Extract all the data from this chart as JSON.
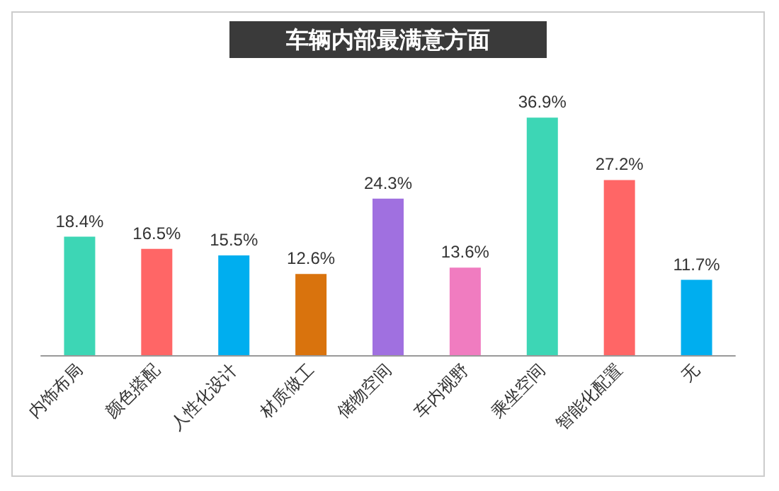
{
  "chart_data": {
    "type": "bar",
    "title": "车辆内部最满意方面",
    "categories": [
      "内饰布局",
      "颜色搭配",
      "人性化设计",
      "材质做工",
      "储物空间",
      "车内视野",
      "乘坐空间",
      "智能化配置",
      "无"
    ],
    "values": [
      18.4,
      16.5,
      15.5,
      12.6,
      24.3,
      13.6,
      36.9,
      27.2,
      11.7
    ],
    "value_labels": [
      "18.4%",
      "16.5%",
      "15.5%",
      "12.6%",
      "24.3%",
      "13.6%",
      "36.9%",
      "27.2%",
      "11.7%"
    ],
    "colors": [
      "#3dd6b5",
      "#ff6666",
      "#00aeef",
      "#d9730d",
      "#a070e0",
      "#f07cc0",
      "#3dd6b5",
      "#ff6666",
      "#00aeef"
    ],
    "grid": false
  }
}
